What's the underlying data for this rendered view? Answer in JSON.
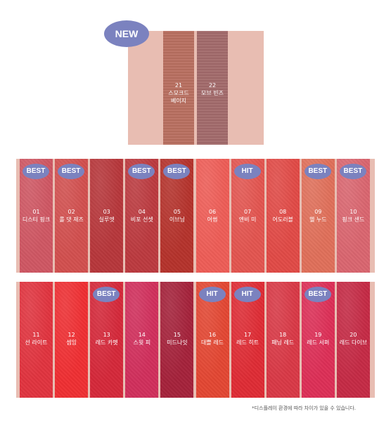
{
  "new_badge": "NEW",
  "new_shades": [
    {
      "number": "21",
      "name": "스모크드",
      "name2": "베이지",
      "color": "#b86f60"
    },
    {
      "number": "22",
      "name": "모브 빈즈",
      "name2": "",
      "color": "#a26a6b"
    }
  ],
  "row1": [
    {
      "number": "01",
      "name": "디스티 핑크",
      "badge": "BEST",
      "color": "#cf5763"
    },
    {
      "number": "02",
      "name": "롤 댓 재즈",
      "badge": "BEST",
      "color": "#d2504f"
    },
    {
      "number": "03",
      "name": "실루엣",
      "badge": "",
      "color": "#b7373b"
    },
    {
      "number": "04",
      "name": "비포 선셋",
      "badge": "BEST",
      "color": "#bc3a3f"
    },
    {
      "number": "05",
      "name": "이브닝",
      "badge": "BEST",
      "color": "#b5332c"
    },
    {
      "number": "06",
      "name": "어썸",
      "badge": "",
      "color": "#ee5d57"
    },
    {
      "number": "07",
      "name": "엔비 미",
      "badge": "HIT",
      "color": "#e35550"
    },
    {
      "number": "08",
      "name": "어도러블",
      "badge": "",
      "color": "#e14a46"
    },
    {
      "number": "09",
      "name": "헬 누드",
      "badge": "BEST",
      "color": "#e0705a"
    },
    {
      "number": "10",
      "name": "핑크 샌드",
      "badge": "BEST",
      "color": "#da6670"
    }
  ],
  "row2": [
    {
      "number": "11",
      "name": "선 라이트",
      "badge": "",
      "color": "#e1343f"
    },
    {
      "number": "12",
      "name": "셈잉",
      "badge": "",
      "color": "#ef2f33"
    },
    {
      "number": "13",
      "name": "레드 카펫",
      "badge": "BEST",
      "color": "#d5283a"
    },
    {
      "number": "14",
      "name": "스윗 피",
      "badge": "",
      "color": "#d12f5c"
    },
    {
      "number": "15",
      "name": "미드나잇",
      "badge": "",
      "color": "#a5223b"
    },
    {
      "number": "16",
      "name": "대쁠 레드",
      "badge": "HIT",
      "color": "#e34733"
    },
    {
      "number": "17",
      "name": "레드 히트",
      "badge": "HIT",
      "color": "#df2c35"
    },
    {
      "number": "18",
      "name": "패닝 레드",
      "badge": "",
      "color": "#d93946"
    },
    {
      "number": "19",
      "name": "레드 서퍼",
      "badge": "BEST",
      "color": "#dd2f57"
    },
    {
      "number": "20",
      "name": "레드 다이브",
      "badge": "",
      "color": "#c52a45"
    }
  ],
  "note": "*디스플레이 환경에 따라 차이가 있을 수 있습니다."
}
